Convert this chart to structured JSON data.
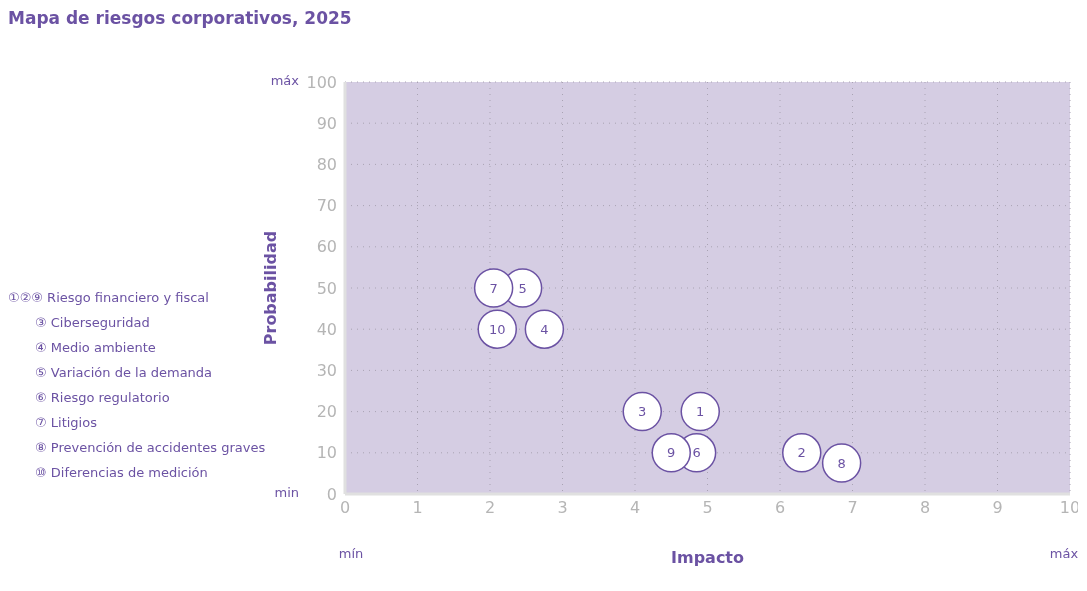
{
  "chart_data": {
    "type": "scatter",
    "title": "Mapa de riesgos corporativos, 2025",
    "xlabel": "Impacto",
    "ylabel": "Probabilidad",
    "series": [
      {
        "name": "1",
        "color": "#ffffff",
        "x": [
          4.9
        ],
        "values": [
          20
        ]
      },
      {
        "name": "2",
        "color": "#ffffff",
        "x": [
          6.3
        ],
        "values": [
          10
        ]
      },
      {
        "name": "3",
        "color": "#ffffff",
        "x": [
          4.1
        ],
        "values": [
          20
        ]
      },
      {
        "name": "4",
        "color": "#ffffff",
        "x": [
          2.75
        ],
        "values": [
          40
        ]
      },
      {
        "name": "5",
        "color": "#ffffff",
        "x": [
          2.45
        ],
        "values": [
          50
        ]
      },
      {
        "name": "6",
        "color": "#ffffff",
        "x": [
          4.85
        ],
        "values": [
          10
        ]
      },
      {
        "name": "7",
        "color": "#ffffff",
        "x": [
          2.05
        ],
        "values": [
          50
        ]
      },
      {
        "name": "8",
        "color": "#ffffff",
        "x": [
          6.85
        ],
        "values": [
          7.5
        ]
      },
      {
        "name": "9",
        "color": "#ffffff",
        "x": [
          4.5
        ],
        "values": [
          10
        ]
      },
      {
        "name": "10",
        "color": "#ffffff",
        "x": [
          2.1
        ],
        "values": [
          40
        ]
      }
    ],
    "xlim": [
      0,
      10
    ],
    "xticks": [
      0,
      1,
      2,
      3,
      4,
      5,
      6,
      7,
      8,
      9,
      10
    ],
    "ylim": [
      0,
      100
    ],
    "yticks": [
      0,
      10,
      20,
      30,
      40,
      50,
      60,
      70,
      80,
      90,
      100
    ],
    "grid": true,
    "marker": "circle",
    "annotations": [
      "①②⑨ Riesgo financiero y fiscal",
      "③ Ciberseguridad",
      "④ Medio ambiente",
      "⑤ Variación de la demanda",
      "⑥ Riesgo regulatorio",
      "⑦ Litigios",
      "⑧ Prevención de accidentes graves",
      "⑩ Diferencias de medición",
      "máx",
      "min",
      "mín",
      "máx"
    ]
  }
}
